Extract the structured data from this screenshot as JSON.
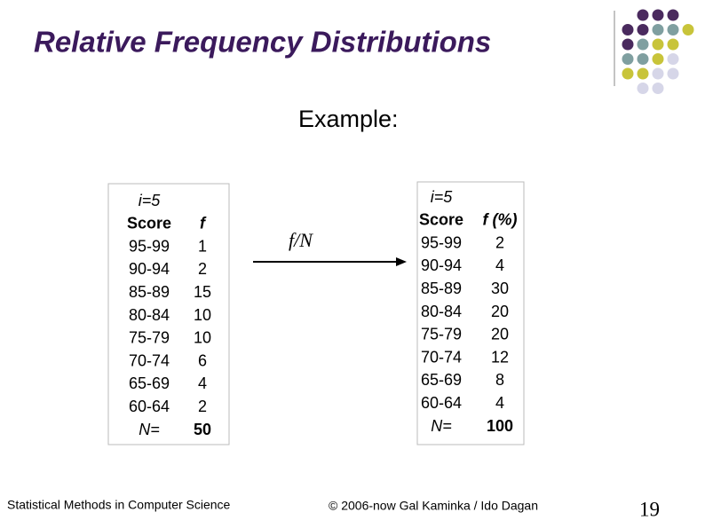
{
  "header": {
    "title": "Relative Frequency Distributions",
    "subtitle": "Example:"
  },
  "left_table": {
    "interval": "i=5",
    "columns": [
      "Score",
      "f"
    ],
    "rows": [
      [
        "95-99",
        1
      ],
      [
        "90-94",
        2
      ],
      [
        "85-89",
        15
      ],
      [
        "80-84",
        10
      ],
      [
        "75-79",
        10
      ],
      [
        "70-74",
        6
      ],
      [
        "65-69",
        4
      ],
      [
        "60-64",
        2
      ]
    ],
    "total": [
      "N=",
      50
    ]
  },
  "arrow_label": "f/N",
  "right_table": {
    "interval": "i=5",
    "columns": [
      "Score",
      "f (%)"
    ],
    "rows": [
      [
        "95-99",
        2
      ],
      [
        "90-94",
        4
      ],
      [
        "85-89",
        30
      ],
      [
        "80-84",
        20
      ],
      [
        "75-79",
        20
      ],
      [
        "70-74",
        12
      ],
      [
        "65-69",
        8
      ],
      [
        "60-64",
        4
      ]
    ],
    "total": [
      "N=",
      100
    ]
  },
  "footer": {
    "left": "Statistical Methods in Computer Science",
    "center": "© 2006-now Gal Kaminka / Ido Dagan",
    "page": "19"
  }
}
